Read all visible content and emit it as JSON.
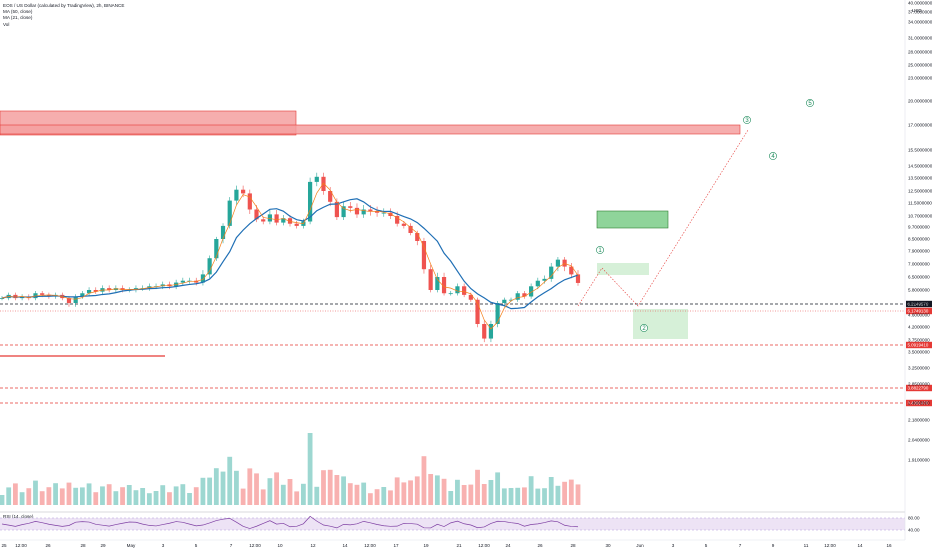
{
  "legend": {
    "title": "EOS / US Dollar (calculated by TradingView), 2h, BINANCE",
    "ma1": "MA (50, close)",
    "ma2": "MA (21, close)",
    "vol": "Vol"
  },
  "rsi_label": "RSI (14, close)",
  "currency": "USD",
  "colors": {
    "up": "#26a69a",
    "down": "#ef5350",
    "ma50": "#1f6fb5",
    "ma21": "#f57f17",
    "rsi": "#7e3fa3",
    "zone_red": "#f4a0a0",
    "zone_green_dark": "#8fd49a",
    "zone_green_light": "#d6f0d8",
    "wave_green": "#1b8a5a"
  },
  "chart_data": {
    "type": "candlestick",
    "y_axis_labels": [
      "40.0000000",
      "37.0000000",
      "34.0000000",
      "31.0000000",
      "28.0000000",
      "25.0000000",
      "23.0000000",
      "20.0000000",
      "17.0000000",
      "15.5000000",
      "14.5000000",
      "13.5000000",
      "12.5000000",
      "11.5000000",
      "10.7000000",
      "9.7000000",
      "8.5000000",
      "7.9000000",
      "7.0000000",
      "6.5000000",
      "5.8000000",
      "5.0000000",
      "4.6000000",
      "4.2000000",
      "3.7500000",
      "3.5000000",
      "3.2500000",
      "2.8500000",
      "2.4900000",
      "2.1800000",
      "2.0400000",
      "1.9100000"
    ],
    "x_axis_labels": [
      "25",
      "12:00",
      "26",
      "28",
      "29",
      "May",
      "3",
      "5",
      "7",
      "12:00",
      "10",
      "12",
      "14",
      "12:00",
      "17",
      "19",
      "21",
      "12:00",
      "24",
      "26",
      "28",
      "30",
      "Jun",
      "3",
      "5",
      "7",
      "9",
      "11",
      "12:00",
      "14",
      "16"
    ],
    "price_badges": [
      {
        "label": "6.2149570",
        "color": "#131722"
      },
      {
        "label": "6.1749130",
        "color": "#e53935"
      },
      {
        "label": "5.0919410",
        "color": "#e53935"
      },
      {
        "label": "3.8822790",
        "color": "#e53935"
      },
      {
        "label": "3.4391470",
        "color": "#e53935"
      }
    ],
    "rsi_axis_labels": [
      "80.00",
      "40.00"
    ],
    "wave_labels": [
      "1",
      "2",
      "3",
      "4",
      "5"
    ],
    "close_series": [
      5.3,
      5.5,
      5.3,
      5.4,
      5.3,
      5.6,
      5.5,
      5.4,
      5.5,
      5.3,
      5.0,
      5.4,
      5.6,
      5.8,
      5.7,
      5.9,
      5.8,
      5.9,
      5.8,
      5.8,
      5.9,
      5.9,
      6.0,
      6.0,
      6.1,
      6.0,
      6.2,
      6.3,
      6.3,
      6.2,
      6.6,
      7.4,
      8.5,
      9.8,
      11.7,
      12.6,
      12.3,
      11.1,
      10.4,
      10.2,
      10.8,
      10.1,
      10.5,
      10.0,
      9.8,
      10.2,
      13.2,
      13.6,
      12.5,
      11.6,
      10.6,
      11.3,
      11.2,
      10.8,
      11.1,
      11.0,
      10.9,
      10.9,
      10.7,
      10.0,
      9.8,
      9.1,
      8.4,
      6.8,
      5.8,
      6.5,
      5.6,
      5.6,
      6.0,
      5.5,
      5.2,
      4.3,
      3.8,
      4.3,
      5.0,
      5.2,
      5.2,
      5.6,
      5.4,
      6.0,
      6.3,
      6.4,
      6.9,
      7.3,
      6.9,
      6.6,
      6.18
    ]
  }
}
